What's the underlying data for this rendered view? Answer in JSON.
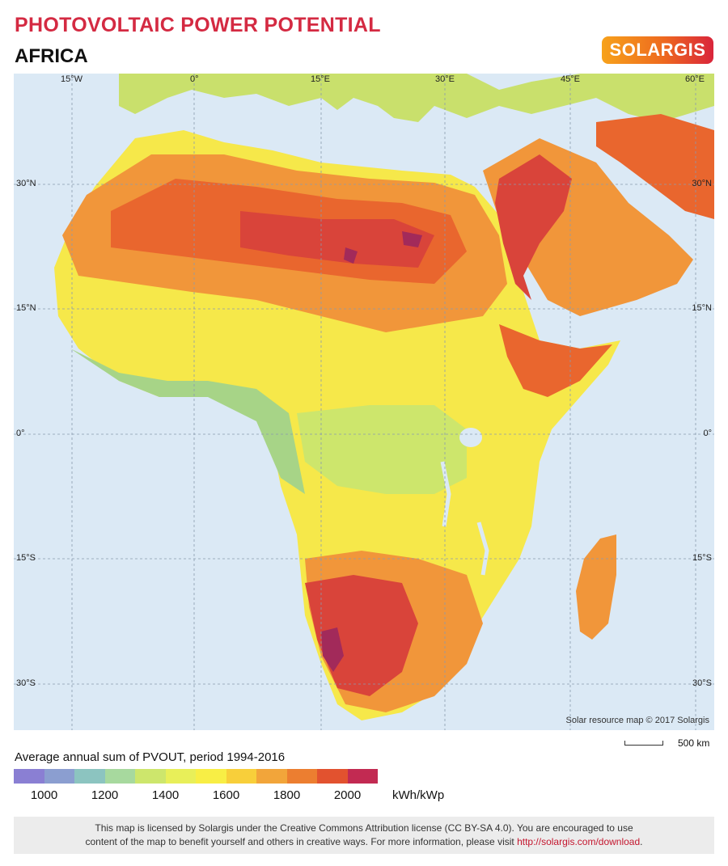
{
  "header": {
    "title": "PHOTOVOLTAIC POWER POTENTIAL",
    "subtitle": "AFRICA",
    "logo_text": "SOLARGIS"
  },
  "map": {
    "graticule_top": [
      "15°W",
      "0°",
      "15°E",
      "30°E",
      "45°E",
      "60°E"
    ],
    "graticule_left": [
      "30°N",
      "15°N",
      "0°",
      "15°S",
      "30°S"
    ],
    "graticule_right": [
      "30°N",
      "15°N",
      "0°",
      "15°S",
      "30°S"
    ],
    "copyright": "Solar resource map © 2017 Solargis",
    "scale_label": "500 km",
    "colors": {
      "ocean": "#dbe9f5",
      "europe": "#c9e06c",
      "yellow": "#f6e84a",
      "orange": "#f1963a",
      "deep_orange": "#e9662e",
      "red": "#d9443a",
      "purple": "#a22a5a",
      "green": "#a7d487"
    }
  },
  "legend": {
    "title": "Average annual sum of PVOUT, period 1994-2016",
    "colors": [
      "#8a7fd3",
      "#8b9ed0",
      "#8cc4c0",
      "#a7d99e",
      "#cde66c",
      "#e8ef59",
      "#f8ee45",
      "#f8cf3a",
      "#f2a53a",
      "#ec7e30",
      "#e2522f",
      "#c22a52"
    ],
    "ticks": [
      "1000",
      "1200",
      "1400",
      "1600",
      "1800",
      "2000"
    ],
    "unit": "kWh/kWp"
  },
  "license": {
    "line1": "This map is licensed by Solargis under the Creative Commons Attribution license (CC BY-SA 4.0). You are encouraged to use",
    "line2_before": "content of the map to benefit yourself and others in creative ways. For more information, please visit ",
    "link_text": "http://solargis.com/download",
    "line2_after": "."
  }
}
